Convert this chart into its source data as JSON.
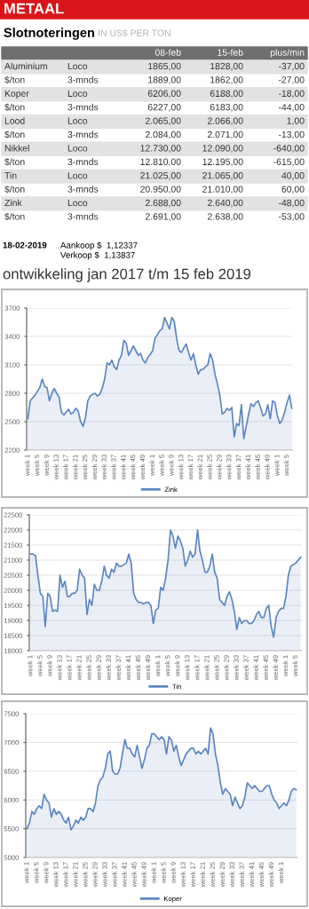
{
  "chart_data": [
    {
      "type": "other",
      "title": "METAAL",
      "subtitle": "Slotnoteringen",
      "categories": [
        null,
        null,
        "08-feb",
        "15-feb",
        "plus/min"
      ],
      "cell_labels": [
        [
          "Aluminium",
          "Loco",
          "1865,00",
          "1828,00",
          "-37,00"
        ],
        [
          "$/ton",
          "3-mnds",
          "1889,00",
          "1862,00",
          "-27,00"
        ],
        [
          "Koper",
          "Loco",
          "6206,00",
          "6188,00",
          "-18,00"
        ],
        [
          "$/ton",
          "3-mnds",
          "6227,00",
          "6183,00",
          "-44,00"
        ],
        [
          "Lood",
          "Loco",
          "2.065,00",
          "2.066,00",
          "1,00"
        ],
        [
          "$/ton",
          "3-mnds",
          "2.084,00",
          "2.071,00",
          "-13,00"
        ],
        [
          "Nikkel",
          "Loco",
          "12.730,00",
          "12.090,00",
          "-640,00"
        ],
        [
          "$/ton",
          "3-mnds",
          "12.810,00",
          "12.195,00",
          "-615,00"
        ],
        [
          "Tin",
          "Loco",
          "21.025,00",
          "21.065,00",
          "40,00"
        ],
        [
          "$/ton",
          "3-mnds",
          "20.950,00",
          "21.010,00",
          "60,00"
        ],
        [
          "Zink",
          "Loco",
          "2.688,00",
          "2.640,00",
          "-48,00"
        ],
        [
          "$/ton",
          "3-mnds",
          "2.691,00",
          "2.638,00",
          "-53,00"
        ]
      ],
      "annotations": [
        "IN US$ PER TON",
        "18-02-2019",
        "Aankoop $  1,12337",
        "Verkoop $  1,13837",
        "ontwikkeling jan 2017 t/m 15 feb 2019"
      ]
    },
    {
      "type": "area",
      "grid": "y",
      "legend": "bottom",
      "ylim": [
        2200,
        3700
      ],
      "yticks": [
        2200,
        2500,
        2800,
        3100,
        3400,
        3700
      ],
      "categories": [
        "week 1",
        null,
        null,
        null,
        "week 5",
        null,
        null,
        null,
        "week 9",
        null,
        null,
        null,
        "week 13",
        null,
        null,
        null,
        "week 17",
        null,
        null,
        null,
        "week 21",
        null,
        null,
        null,
        "week 25",
        null,
        null,
        null,
        "week 29",
        null,
        null,
        null,
        "week 33",
        null,
        null,
        null,
        "week 37",
        null,
        null,
        null,
        "week 41",
        null,
        null,
        null,
        "week 45",
        null,
        null,
        null,
        "week 49",
        null,
        null,
        null,
        "week 1",
        null,
        null,
        null,
        "week 5",
        null,
        null,
        null,
        "week 9",
        null,
        null,
        null,
        "week 13",
        null,
        null,
        null,
        "week 17",
        null,
        null,
        null,
        "week 21",
        null,
        null,
        null,
        "week 25",
        null,
        null,
        null,
        "week 29",
        null,
        null,
        null,
        "week 33",
        null,
        null,
        null,
        "week 37",
        null,
        null,
        null,
        "week 41",
        null,
        null,
        null,
        "week 45",
        null,
        null,
        null,
        "week 49",
        null,
        null,
        null,
        "week 1",
        null,
        null,
        null,
        "week 5",
        null,
        null
      ],
      "series": [
        {
          "name": "Zink",
          "color": "#5a86c0",
          "values": [
            2530,
            2720,
            2750,
            2780,
            2820,
            2860,
            2950,
            2870,
            2860,
            2720,
            2800,
            2850,
            2800,
            2760,
            2600,
            2570,
            2600,
            2630,
            2580,
            2600,
            2640,
            2610,
            2500,
            2450,
            2540,
            2720,
            2770,
            2790,
            2800,
            2770,
            2790,
            2850,
            2950,
            3120,
            3100,
            3150,
            3080,
            3050,
            3150,
            3200,
            3360,
            3330,
            3200,
            3250,
            3300,
            3250,
            3200,
            3220,
            3150,
            3120,
            3180,
            3210,
            3250,
            3380,
            3420,
            3460,
            3480,
            3600,
            3540,
            3480,
            3600,
            3560,
            3380,
            3250,
            3230,
            3280,
            3320,
            3230,
            3150,
            3220,
            3100,
            3000,
            3050,
            3050,
            3080,
            3100,
            3220,
            3150,
            3000,
            2900,
            2780,
            2580,
            2600,
            2640,
            2620,
            2650,
            2340,
            2480,
            2460,
            2680,
            2320,
            2450,
            2580,
            2690,
            2660,
            2700,
            2720,
            2650,
            2560,
            2580,
            2680,
            2530,
            2720,
            2700,
            2560,
            2480,
            2520,
            2600,
            2700,
            2780,
            2640
          ]
        }
      ]
    },
    {
      "type": "area",
      "grid": "y",
      "legend": "bottom",
      "ylim": [
        18000,
        22500
      ],
      "yticks": [
        18000,
        18500,
        19000,
        19500,
        20000,
        20500,
        21000,
        21500,
        22000,
        22500
      ],
      "categories": [
        "week 1",
        null,
        null,
        null,
        "week 5",
        null,
        null,
        null,
        "week 9",
        null,
        null,
        null,
        "week 13",
        null,
        null,
        null,
        "week 17",
        null,
        null,
        null,
        "week 21",
        null,
        null,
        null,
        "week 25",
        null,
        null,
        null,
        "week 29",
        null,
        null,
        null,
        "week 33",
        null,
        null,
        null,
        "week 37",
        null,
        null,
        null,
        "week 41",
        null,
        null,
        null,
        "week 45",
        null,
        null,
        null,
        "week 49",
        null,
        null,
        null,
        "week 1",
        null,
        null,
        null,
        "week 5",
        null,
        null,
        null,
        "week 9",
        null,
        null,
        null,
        "week 13",
        null,
        null,
        null,
        "week 17",
        null,
        null,
        null,
        "week 21",
        null,
        null,
        null,
        "week 25",
        null,
        null,
        null,
        "week 29",
        null,
        null,
        null,
        "week 33",
        null,
        null,
        null,
        "week 37",
        null,
        null,
        null,
        "week 41",
        null,
        null,
        null,
        "week 45",
        null,
        null,
        null,
        "week 49",
        null,
        null,
        null,
        "week 1",
        null,
        null,
        null,
        "week 5",
        null,
        null
      ],
      "series": [
        {
          "name": "Tin",
          "color": "#5a86c0",
          "values": [
            21200,
            21200,
            21150,
            20500,
            19900,
            19800,
            18800,
            19900,
            19800,
            19300,
            19350,
            19300,
            20500,
            20100,
            20300,
            19800,
            19800,
            19900,
            19900,
            20000,
            20700,
            20500,
            20400,
            19200,
            19700,
            19500,
            20200,
            20000,
            20000,
            20300,
            20800,
            20500,
            20400,
            20700,
            20600,
            20900,
            20800,
            20800,
            20850,
            20900,
            21200,
            20900,
            19900,
            19700,
            19600,
            19600,
            19550,
            19600,
            19600,
            19500,
            18900,
            19350,
            19400,
            20100,
            20000,
            20400,
            21000,
            22000,
            21800,
            21400,
            21800,
            21650,
            21400,
            20800,
            21000,
            21300,
            21100,
            21200,
            22000,
            21300,
            21000,
            20600,
            20600,
            20800,
            21200,
            20600,
            20400,
            19700,
            19600,
            19500,
            19800,
            19950,
            19700,
            19300,
            18700,
            19100,
            18900,
            19000,
            19000,
            18900,
            18900,
            19000,
            19200,
            19300,
            19100,
            19100,
            19400,
            19500,
            18800,
            18450,
            19100,
            19300,
            19400,
            19400,
            19800,
            20500,
            20800,
            20850,
            20900,
            21000,
            21100
          ]
        }
      ]
    },
    {
      "type": "area",
      "grid": "y",
      "legend": "bottom",
      "ylim": [
        5000,
        7500
      ],
      "yticks": [
        5000,
        5500,
        6000,
        6500,
        7000,
        7500
      ],
      "categories": [
        "week 1",
        null,
        null,
        null,
        "week 5",
        null,
        null,
        null,
        "week 9",
        null,
        null,
        null,
        "week 13",
        null,
        null,
        null,
        "week 17",
        null,
        null,
        null,
        "week 21",
        null,
        null,
        null,
        "week 25",
        null,
        null,
        null,
        "week 29",
        null,
        null,
        null,
        "week 33",
        null,
        null,
        null,
        "week 37",
        null,
        null,
        null,
        "week 41",
        null,
        null,
        null,
        "week 45",
        null,
        null,
        null,
        "week 49",
        null,
        null,
        null,
        "week 1",
        null,
        null,
        null,
        "week 5",
        null,
        null,
        null,
        "week 9",
        null,
        null,
        null,
        "week 13",
        null,
        null,
        null,
        "week 17",
        null,
        null,
        null,
        "week 21",
        null,
        null,
        null,
        "week 25",
        null,
        null,
        null,
        "week 29",
        null,
        null,
        null,
        "week 33",
        null,
        null,
        null,
        "week 37",
        null,
        null,
        null,
        "week 41",
        null,
        null,
        null,
        "week 45",
        null,
        null,
        null,
        "week 49",
        null,
        null,
        null,
        "week 1",
        null,
        null,
        null,
        null,
        null,
        null
      ],
      "series": [
        {
          "name": "Koper",
          "color": "#5a86c0",
          "values": [
            5500,
            5600,
            5800,
            5750,
            5850,
            5900,
            5850,
            6100,
            6000,
            5950,
            5700,
            5850,
            5750,
            5800,
            5750,
            5650,
            5600,
            5700,
            5480,
            5550,
            5650,
            5600,
            5700,
            5650,
            5700,
            5850,
            5850,
            5800,
            5950,
            6250,
            6350,
            6400,
            6550,
            6800,
            6850,
            6500,
            6450,
            6450,
            6550,
            6800,
            7050,
            6900,
            6900,
            6800,
            6750,
            6950,
            6750,
            6550,
            6700,
            6900,
            6950,
            7150,
            7150,
            7100,
            7050,
            7100,
            7050,
            6800,
            7100,
            7050,
            6850,
            6950,
            6750,
            6600,
            6700,
            6800,
            6850,
            6900,
            6900,
            6800,
            6850,
            6800,
            6850,
            6900,
            6800,
            7250,
            7150,
            6800,
            6600,
            6300,
            6100,
            6200,
            6150,
            6100,
            5900,
            6050,
            5950,
            5850,
            5900,
            6050,
            6300,
            6250,
            6200,
            6250,
            6200,
            6150,
            6150,
            6200,
            6250,
            6250,
            6100,
            6000,
            5950,
            5850,
            5900,
            5950,
            5900,
            6000,
            6150,
            6200,
            6180
          ]
        }
      ]
    }
  ]
}
